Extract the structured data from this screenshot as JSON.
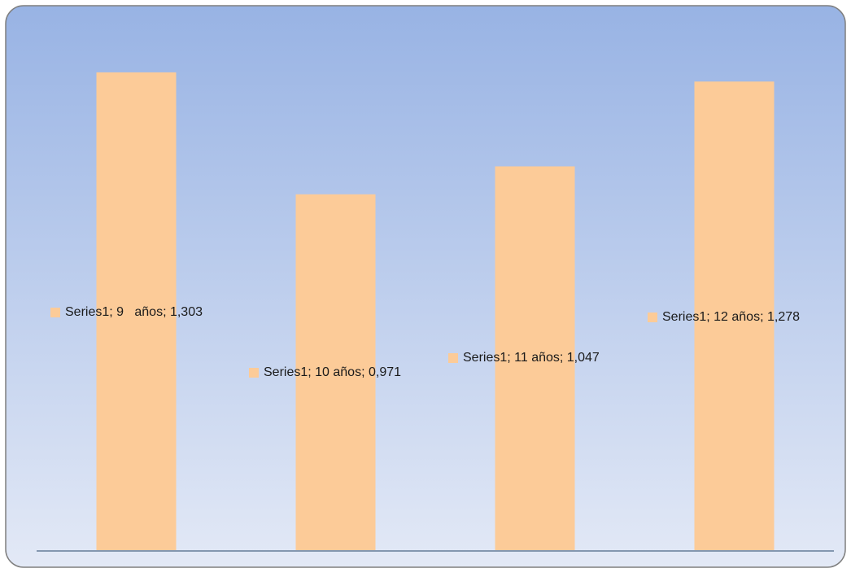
{
  "chart_data": {
    "type": "bar",
    "values": [
      1.303,
      0.971,
      1.047,
      1.278
    ],
    "value_labels": [
      "Series1; 9   años; 1,303",
      "Series1; 10 años; 0,971",
      "Series1; 11 años; 1,047",
      "Series1; 12 años; 1,278"
    ],
    "color": "#fccb98",
    "ylim": [
      0,
      1.5
    ]
  }
}
